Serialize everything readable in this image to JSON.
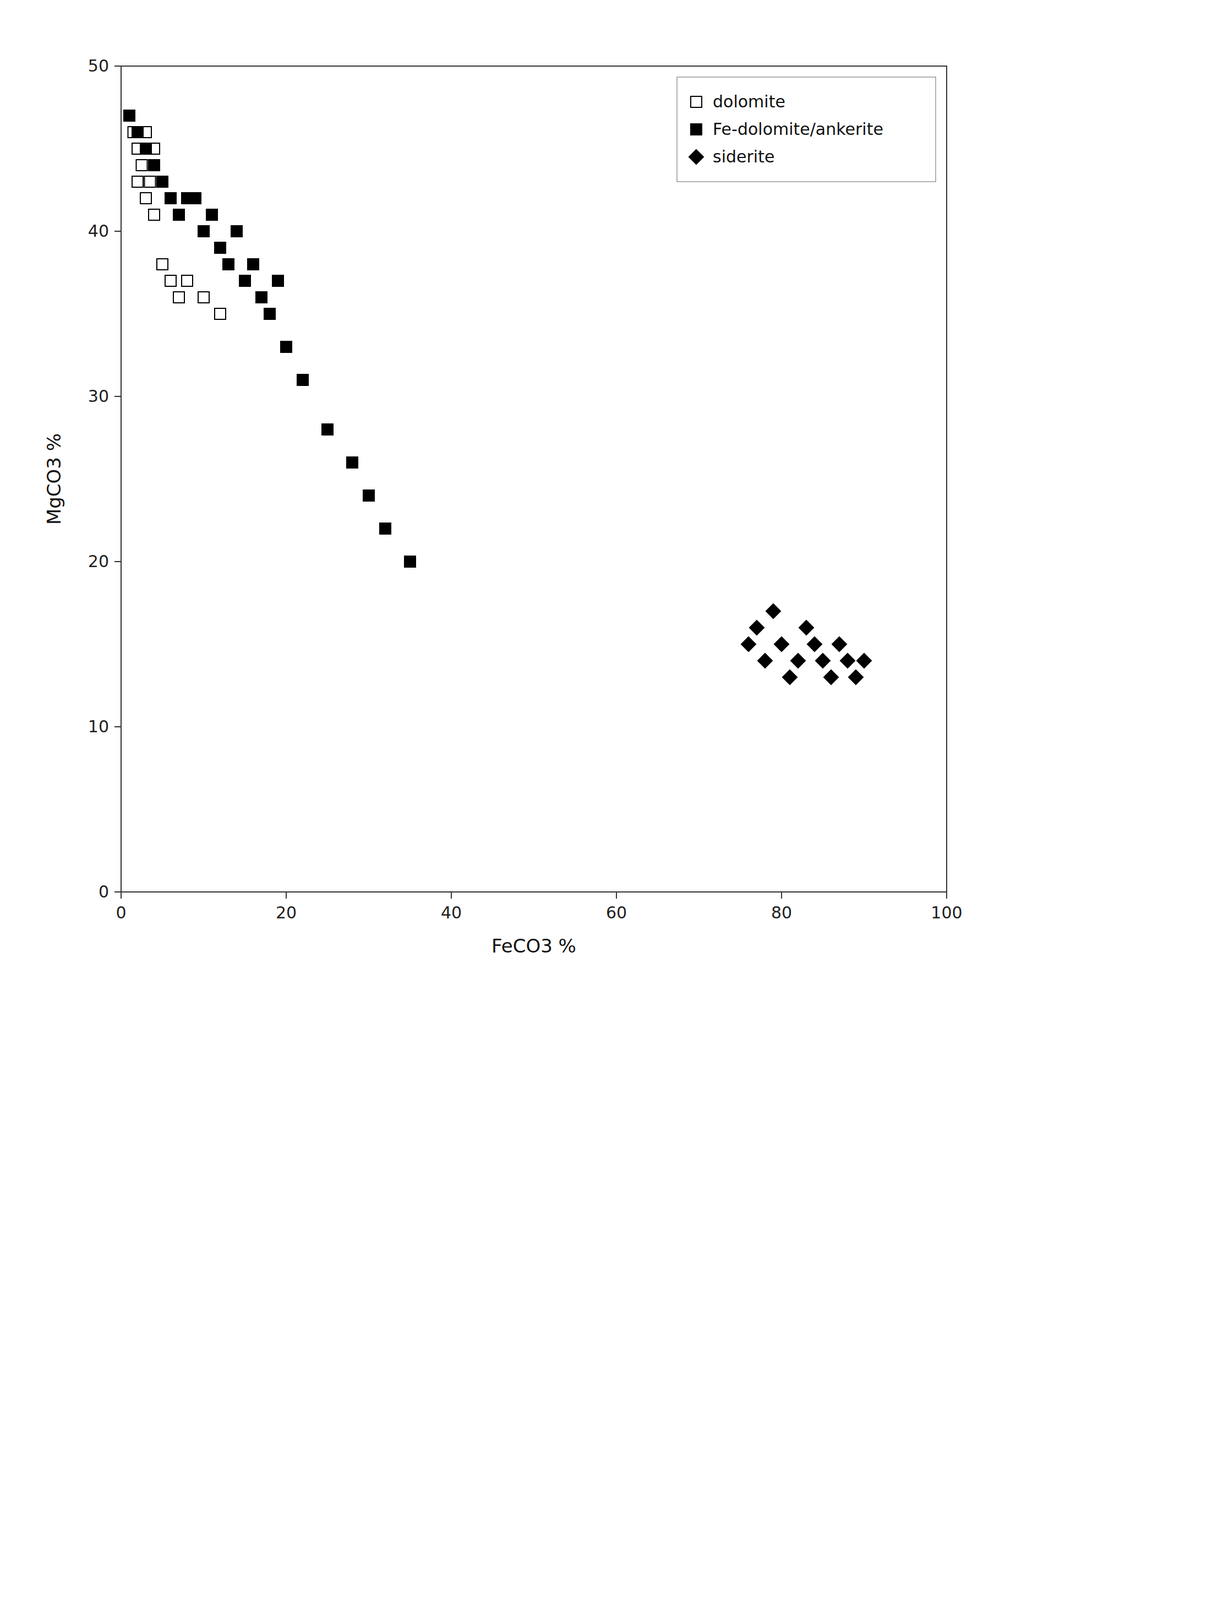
{
  "chart_data": {
    "type": "scatter",
    "xlabel": "FeCO3 %",
    "ylabel": "MgCO3 %",
    "xlim": [
      0,
      100
    ],
    "ylim": [
      0,
      50
    ],
    "xticks": [
      0,
      20,
      40,
      60,
      80,
      100
    ],
    "yticks": [
      0,
      10,
      20,
      30,
      40,
      50
    ],
    "grid": false,
    "legend": "upper right",
    "series": [
      {
        "name": "dolomite",
        "marker": "square",
        "color": "white",
        "x": [
          1,
          1.5,
          2,
          2,
          2.5,
          3,
          3,
          3.5,
          4,
          4,
          5,
          6,
          7,
          8,
          10,
          12
        ],
        "values": [
          47,
          46,
          45,
          43,
          44,
          46,
          42,
          43,
          41,
          45,
          38,
          37,
          36,
          37,
          36,
          35
        ]
      },
      {
        "name": "Fe-dolomite/ankerite",
        "marker": "square",
        "color": "black",
        "x": [
          1,
          2,
          3,
          4,
          5,
          6,
          7,
          8,
          9,
          10,
          11,
          12,
          13,
          14,
          15,
          16,
          17,
          18,
          19,
          20,
          22,
          25,
          28,
          30,
          32,
          35
        ],
        "values": [
          47,
          46,
          45,
          44,
          43,
          42,
          41,
          42,
          42,
          40,
          41,
          39,
          38,
          40,
          37,
          38,
          36,
          35,
          37,
          33,
          31,
          28,
          26,
          24,
          22,
          20
        ]
      },
      {
        "name": "siderite",
        "marker": "diamond",
        "color": "black",
        "x": [
          76,
          77,
          78,
          79,
          80,
          81,
          82,
          83,
          84,
          85,
          86,
          87,
          88,
          89,
          90
        ],
        "values": [
          15,
          16,
          14,
          17,
          15,
          13,
          14,
          16,
          15,
          14,
          13,
          15,
          14,
          13,
          14
        ]
      }
    ]
  }
}
